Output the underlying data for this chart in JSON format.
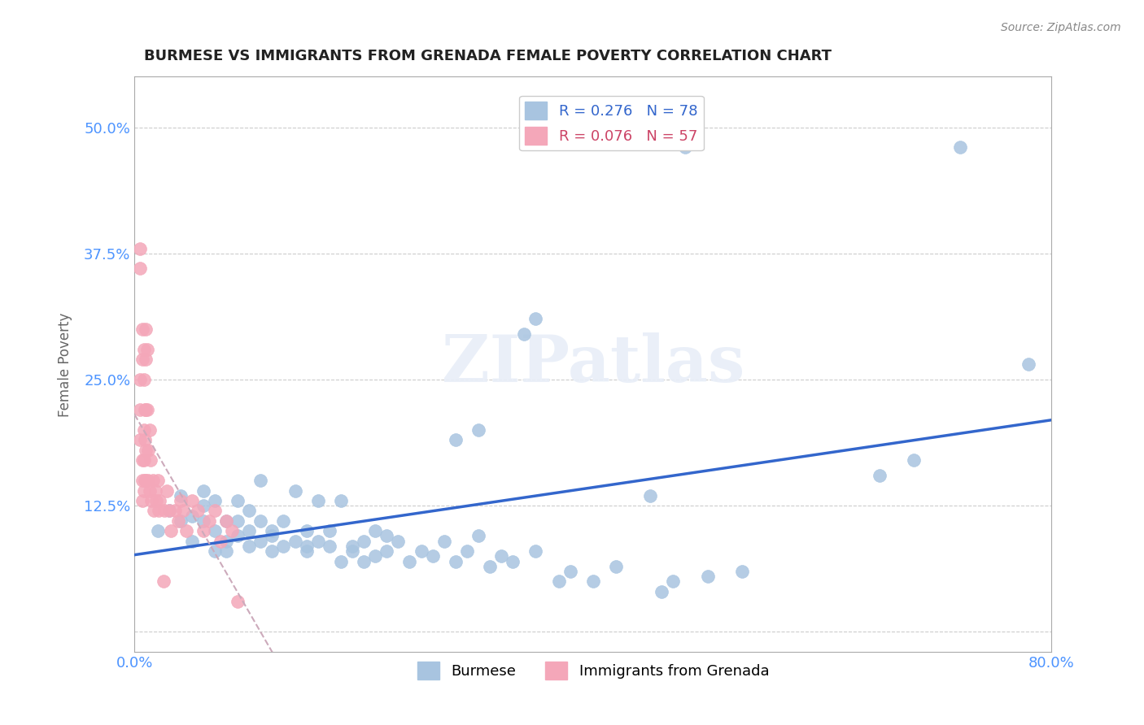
{
  "title": "BURMESE VS IMMIGRANTS FROM GRENADA FEMALE POVERTY CORRELATION CHART",
  "source": "Source: ZipAtlas.com",
  "ylabel": "Female Poverty",
  "xlim": [
    0.0,
    0.8
  ],
  "ylim": [
    -0.02,
    0.55
  ],
  "yticks": [
    0.0,
    0.125,
    0.25,
    0.375,
    0.5
  ],
  "ytick_labels": [
    "",
    "12.5%",
    "25.0%",
    "37.5%",
    "50.0%"
  ],
  "xticks": [
    0.0,
    0.2,
    0.4,
    0.6,
    0.8
  ],
  "xtick_labels": [
    "0.0%",
    "",
    "",
    "",
    "80.0%"
  ],
  "burmese_color": "#a8c4e0",
  "grenada_color": "#f4a7b9",
  "burmese_line_color": "#3366cc",
  "grenada_line_color": "#ccaabb",
  "burmese_text_color": "#3366cc",
  "grenada_text_color": "#cc4466",
  "burmese_R": 0.276,
  "burmese_N": 78,
  "grenada_R": 0.076,
  "grenada_N": 57,
  "watermark": "ZIPatlas",
  "background_color": "#ffffff",
  "grid_color": "#cccccc",
  "axis_color": "#aaaaaa",
  "tick_label_color": "#4d94ff",
  "burmese_x": [
    0.02,
    0.03,
    0.04,
    0.04,
    0.05,
    0.05,
    0.06,
    0.06,
    0.06,
    0.07,
    0.07,
    0.07,
    0.08,
    0.08,
    0.08,
    0.09,
    0.09,
    0.09,
    0.1,
    0.1,
    0.1,
    0.11,
    0.11,
    0.11,
    0.12,
    0.12,
    0.12,
    0.13,
    0.13,
    0.14,
    0.14,
    0.15,
    0.15,
    0.15,
    0.16,
    0.16,
    0.17,
    0.17,
    0.18,
    0.18,
    0.19,
    0.19,
    0.2,
    0.2,
    0.21,
    0.21,
    0.22,
    0.22,
    0.23,
    0.24,
    0.25,
    0.26,
    0.27,
    0.28,
    0.29,
    0.3,
    0.31,
    0.32,
    0.33,
    0.35,
    0.37,
    0.38,
    0.4,
    0.42,
    0.46,
    0.47,
    0.5,
    0.53,
    0.28,
    0.3,
    0.34,
    0.35,
    0.45,
    0.48,
    0.65,
    0.68,
    0.72,
    0.78
  ],
  "burmese_y": [
    0.1,
    0.12,
    0.11,
    0.135,
    0.09,
    0.115,
    0.14,
    0.125,
    0.11,
    0.08,
    0.1,
    0.13,
    0.09,
    0.11,
    0.08,
    0.095,
    0.13,
    0.11,
    0.085,
    0.1,
    0.12,
    0.09,
    0.11,
    0.15,
    0.08,
    0.1,
    0.095,
    0.085,
    0.11,
    0.09,
    0.14,
    0.08,
    0.1,
    0.085,
    0.13,
    0.09,
    0.085,
    0.1,
    0.07,
    0.13,
    0.08,
    0.085,
    0.07,
    0.09,
    0.075,
    0.1,
    0.08,
    0.095,
    0.09,
    0.07,
    0.08,
    0.075,
    0.09,
    0.07,
    0.08,
    0.095,
    0.065,
    0.075,
    0.07,
    0.08,
    0.05,
    0.06,
    0.05,
    0.065,
    0.04,
    0.05,
    0.055,
    0.06,
    0.19,
    0.2,
    0.295,
    0.31,
    0.135,
    0.48,
    0.155,
    0.17,
    0.48,
    0.265
  ],
  "grenada_x": [
    0.005,
    0.005,
    0.005,
    0.005,
    0.005,
    0.007,
    0.007,
    0.007,
    0.007,
    0.007,
    0.008,
    0.008,
    0.008,
    0.008,
    0.008,
    0.009,
    0.009,
    0.009,
    0.01,
    0.01,
    0.01,
    0.01,
    0.01,
    0.011,
    0.011,
    0.012,
    0.012,
    0.013,
    0.013,
    0.014,
    0.015,
    0.016,
    0.017,
    0.018,
    0.019,
    0.02,
    0.021,
    0.022,
    0.025,
    0.026,
    0.028,
    0.03,
    0.032,
    0.035,
    0.038,
    0.04,
    0.042,
    0.045,
    0.05,
    0.055,
    0.06,
    0.065,
    0.07,
    0.075,
    0.08,
    0.085,
    0.09
  ],
  "grenada_y": [
    0.38,
    0.36,
    0.25,
    0.22,
    0.19,
    0.3,
    0.27,
    0.17,
    0.15,
    0.13,
    0.28,
    0.25,
    0.2,
    0.17,
    0.14,
    0.22,
    0.19,
    0.15,
    0.3,
    0.27,
    0.22,
    0.18,
    0.15,
    0.28,
    0.22,
    0.18,
    0.15,
    0.2,
    0.14,
    0.17,
    0.13,
    0.15,
    0.12,
    0.14,
    0.13,
    0.15,
    0.12,
    0.13,
    0.05,
    0.12,
    0.14,
    0.12,
    0.1,
    0.12,
    0.11,
    0.13,
    0.12,
    0.1,
    0.13,
    0.12,
    0.1,
    0.11,
    0.12,
    0.09,
    0.11,
    0.1,
    0.03
  ]
}
